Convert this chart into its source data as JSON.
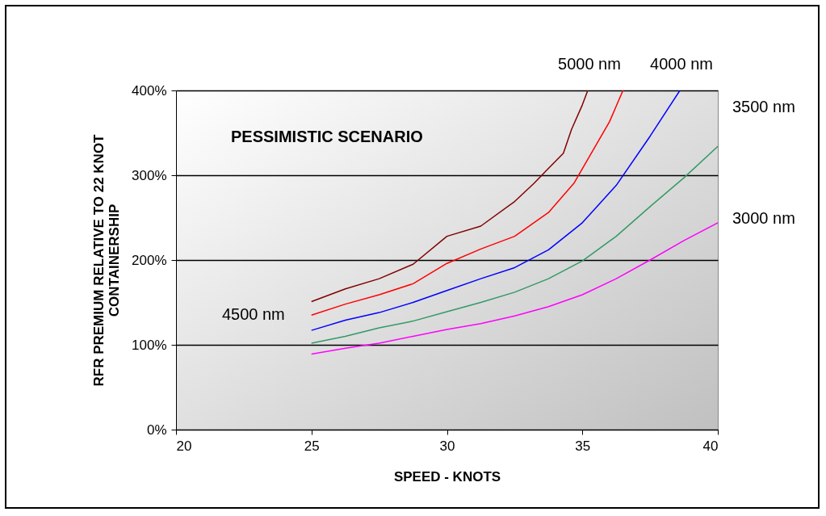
{
  "chart_data": {
    "type": "line",
    "xlabel": "SPEED - KNOTS",
    "ylabel": "RFR PREMIUM RELATIVE TO 22 KNOT\nCONTAINERSHIP",
    "annotations": [
      "PESSIMISTIC SCENARIO"
    ],
    "series": [
      {
        "name": "5000 nm",
        "color": "#800000",
        "x": [
          25,
          26.25,
          27.5,
          28.75,
          30,
          31.25,
          32.5,
          33.2,
          33.75,
          34.3,
          34.6,
          35,
          35.2
        ],
        "values": [
          151,
          166,
          178,
          195,
          228,
          240,
          269,
          290,
          308,
          326,
          354,
          383,
          400
        ]
      },
      {
        "name": "4500 nm",
        "color": "#ff0000",
        "x": [
          25,
          26.25,
          27.5,
          28.75,
          30,
          31.25,
          32.5,
          33.75,
          34.7,
          36,
          36.5
        ],
        "values": [
          135,
          148,
          159,
          172,
          196,
          213,
          228,
          256,
          291,
          363,
          400
        ]
      },
      {
        "name": "4000 nm",
        "color": "#0000ff",
        "x": [
          25,
          26.25,
          27.5,
          28.75,
          30,
          31.25,
          32.5,
          33.75,
          35,
          36.25,
          37.5,
          38.6
        ],
        "values": [
          117,
          129,
          138,
          150,
          164,
          178,
          191,
          212,
          244,
          288,
          346,
          400
        ]
      },
      {
        "name": "3500 nm",
        "color": "#339966",
        "x": [
          25,
          26.25,
          27.5,
          28.75,
          30,
          31.25,
          32.5,
          33.75,
          35,
          36.25,
          37.5,
          38.75,
          40
        ],
        "values": [
          102,
          110,
          120,
          128,
          139,
          150,
          162,
          178,
          199,
          228,
          263,
          297,
          334
        ]
      },
      {
        "name": "3000 nm",
        "color": "#ff00ff",
        "x": [
          25,
          26.25,
          27.5,
          28.75,
          30,
          31.25,
          32.5,
          33.75,
          35,
          36.25,
          37.5,
          38.75,
          40
        ],
        "values": [
          89,
          96,
          102,
          110,
          118,
          125,
          134,
          145,
          159,
          178,
          200,
          223,
          244
        ]
      }
    ],
    "xlim": [
      20,
      40
    ],
    "xticks": [
      20,
      25,
      30,
      35,
      40
    ],
    "ylim": [
      0,
      400
    ],
    "yticks": [
      {
        "value": 0,
        "label": "0%"
      },
      {
        "value": 100,
        "label": "100%"
      },
      {
        "value": 200,
        "label": "200%"
      },
      {
        "value": 300,
        "label": "300%"
      },
      {
        "value": 400,
        "label": "400%"
      }
    ],
    "grid": "y",
    "legend": false,
    "marker": "none",
    "line_style": "solid"
  }
}
